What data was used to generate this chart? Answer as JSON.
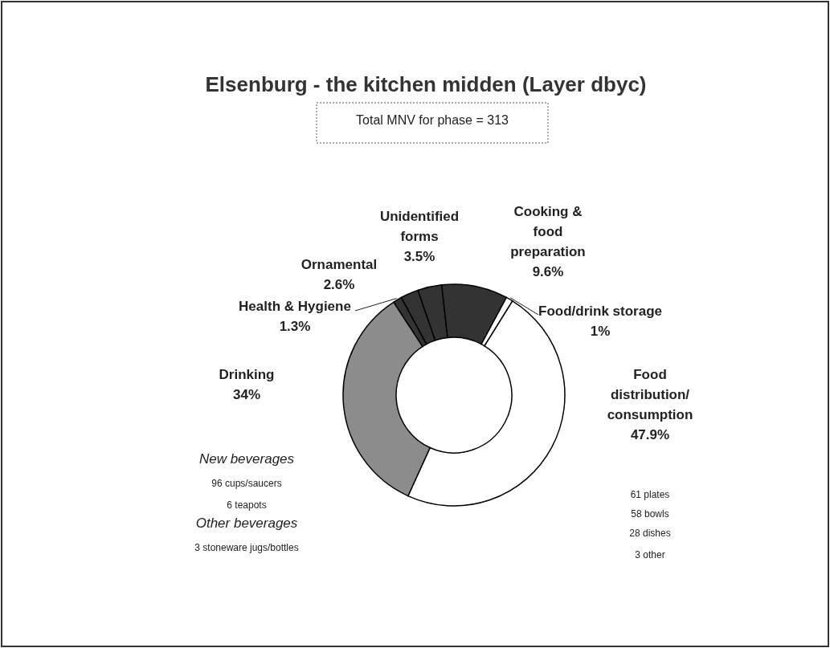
{
  "chart_data": {
    "type": "donut",
    "title": "Elsenburg - the kitchen midden (Layer dbyc)",
    "subtitle": "Total MNV for phase = 313",
    "categories": [
      "Health & Hygiene",
      "Ornamental",
      "Unidentified forms",
      "Cooking & food preparation",
      "Food/drink storage",
      "Food distribution/consumption",
      "Drinking"
    ],
    "values": [
      1.3,
      2.6,
      3.5,
      9.6,
      1,
      47.9,
      34
    ],
    "value_labels": [
      "1.3%",
      "2.6%",
      "3.5%",
      "9.6%",
      "1%",
      "47.9%",
      "34%"
    ],
    "colors": [
      "#333333",
      "#333333",
      "#333333",
      "#333333",
      "#ffffff",
      "#ffffff",
      "#8c8c8c"
    ],
    "legend": false,
    "annotations": [
      "New beverages",
      "96 cups/saucers",
      "6 teapots",
      "Other beverages",
      "3 stoneware jugs/bottles",
      "61 plates",
      "58 bowls",
      "28 dishes",
      "3 other"
    ]
  }
}
